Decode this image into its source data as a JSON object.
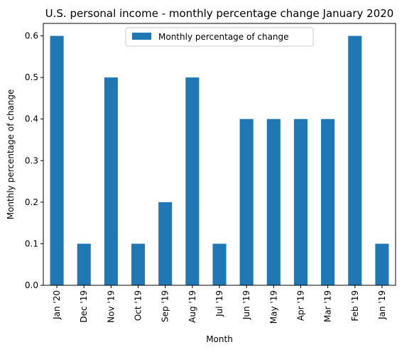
{
  "chart_data": {
    "type": "bar",
    "title": "U.S. personal income - monthly percentage change January 2020",
    "xlabel": "Month",
    "ylabel": "Monthly percentage of change",
    "categories": [
      "Jan '20",
      "Dec '19",
      "Nov '19",
      "Oct '19",
      "Sep '19",
      "Aug '19",
      "Jul '19",
      "Jun '19",
      "May '19",
      "Apr '19",
      "Mar '19",
      "Feb '19",
      "Jan '19"
    ],
    "series": [
      {
        "name": "Monthly percentage of change",
        "values": [
          0.6,
          0.1,
          0.5,
          0.1,
          0.2,
          0.5,
          0.1,
          0.4,
          0.4,
          0.4,
          0.4,
          0.6,
          0.1
        ],
        "color": "#1f77b4"
      }
    ],
    "ylim": [
      0,
      0.63
    ],
    "yticks": [
      0.0,
      0.1,
      0.2,
      0.3,
      0.4,
      0.5,
      0.6
    ],
    "ytick_labels": [
      "0.0",
      "0.1",
      "0.2",
      "0.3",
      "0.4",
      "0.5",
      "0.6"
    ],
    "grid": false,
    "legend": "top-center"
  }
}
